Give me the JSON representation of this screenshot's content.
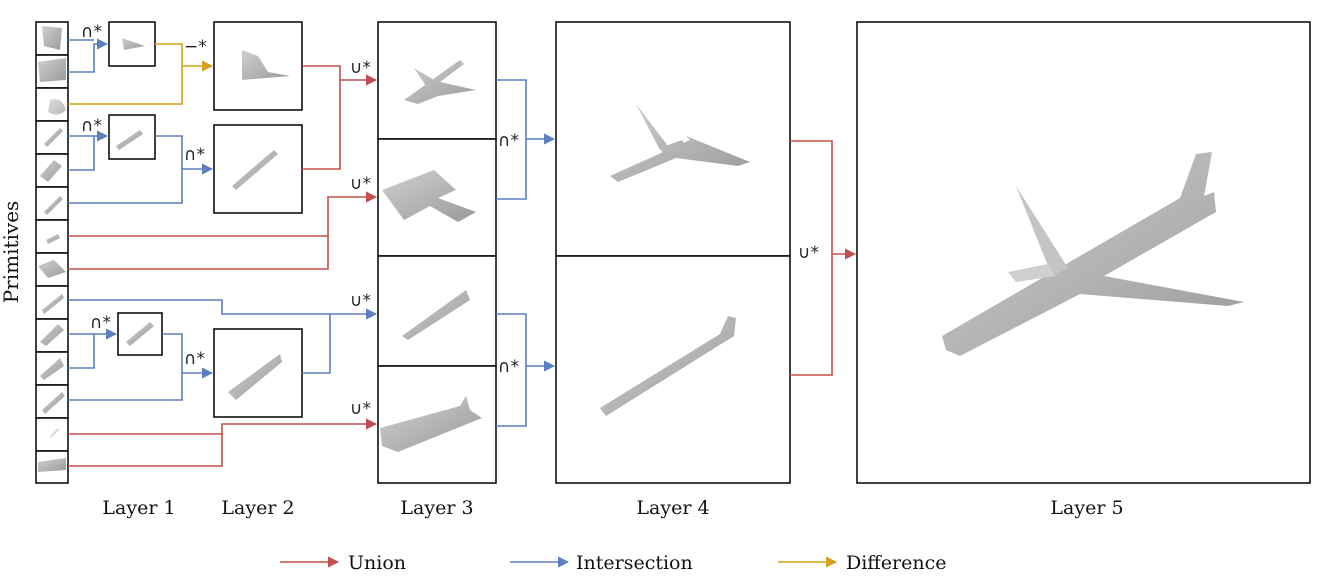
{
  "y_label": "Primitives",
  "layer_labels": [
    "Layer 1",
    "Layer 2",
    "Layer 3",
    "Layer 4",
    "Layer 5"
  ],
  "operators": {
    "union": "∪*",
    "intersection": "∩*",
    "difference": "−*"
  },
  "legend": [
    {
      "label": "Union",
      "color": "#c0504d"
    },
    {
      "label": "Intersection",
      "color": "#5b7fbf"
    },
    {
      "label": "Difference",
      "color": "#d4a017"
    }
  ],
  "colors": {
    "union": "#c0504d",
    "intersection": "#5b7fbf",
    "difference": "#d4a017",
    "shape_fill": "#b8b8b8",
    "box_border": "#000000"
  },
  "icons": [
    "primitive-shape",
    "airplane-part-shape",
    "airplane-shape"
  ]
}
